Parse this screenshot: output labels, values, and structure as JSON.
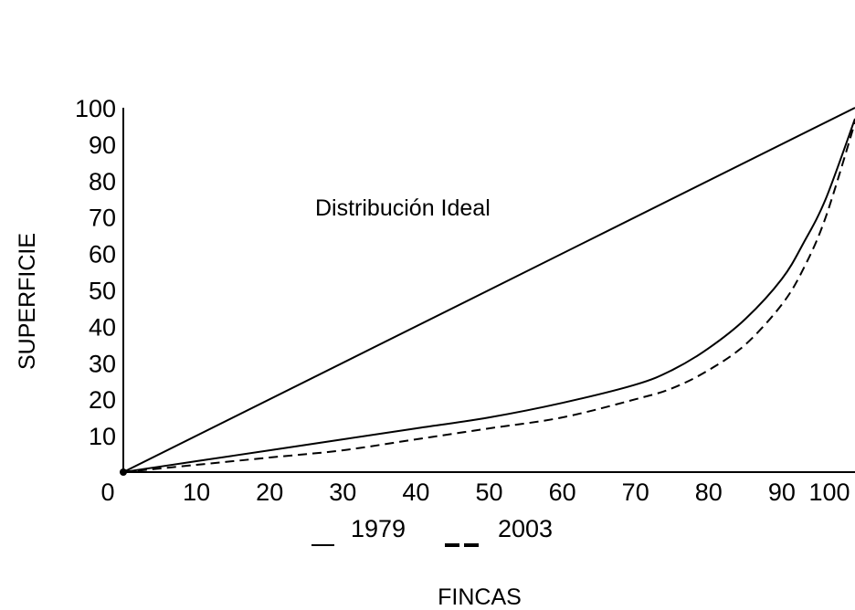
{
  "chart_data": {
    "type": "line",
    "title": "",
    "xlabel": "FINCAS",
    "ylabel": "SUPERFICIE",
    "x_ticks": [
      "0",
      "10",
      "20",
      "30",
      "40",
      "50",
      "60",
      "70",
      "80",
      "90",
      "100"
    ],
    "y_ticks": [
      "10",
      "20",
      "30",
      "40",
      "50",
      "60",
      "70",
      "80",
      "90",
      "100"
    ],
    "xlim": [
      0,
      100
    ],
    "ylim": [
      0,
      100
    ],
    "grid": false,
    "legend_placement": "bottom",
    "annotation": "Distribución Ideal",
    "series": [
      {
        "name": "",
        "role": "ideal",
        "style": "solid",
        "x": [
          0,
          100
        ],
        "y": [
          0,
          100
        ]
      },
      {
        "name": "1979",
        "style": "solid",
        "x": [
          0,
          10,
          20,
          30,
          40,
          50,
          60,
          70,
          75,
          80,
          85,
          90,
          93,
          96,
          100
        ],
        "y": [
          0,
          3,
          6,
          9,
          12,
          15,
          19,
          24,
          28,
          34,
          42,
          53,
          63,
          75,
          97
        ]
      },
      {
        "name": "2003",
        "style": "dashed",
        "x": [
          0,
          10,
          20,
          30,
          40,
          50,
          60,
          70,
          75,
          80,
          85,
          90,
          93,
          96,
          100
        ],
        "y": [
          0,
          2,
          4,
          6,
          9,
          12,
          15,
          20,
          23,
          28,
          35,
          46,
          56,
          70,
          96
        ]
      }
    ],
    "colors": {
      "line": "#000000",
      "background": "#ffffff"
    }
  }
}
